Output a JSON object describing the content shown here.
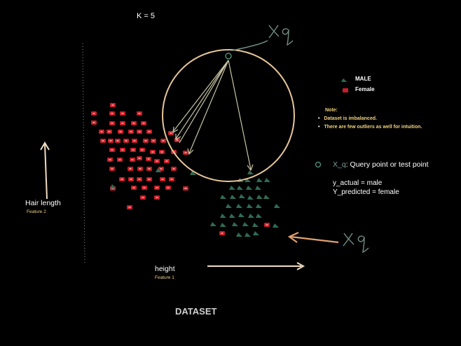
{
  "k_label": "K = 5",
  "legend": {
    "male": "MALE",
    "female": "Female"
  },
  "note": {
    "title": "Note:",
    "items": [
      "Dataset is imbalanced.",
      "There are few outliers as well for intuition."
    ]
  },
  "query": {
    "symbol": "X_q",
    "description": ":  Query point or  test point"
  },
  "prediction": {
    "y_actual": "y_actual = male",
    "y_predicted": "Y_predicted = female"
  },
  "axes": {
    "y_label": "Hair length",
    "y_feature": "Feature 2",
    "x_label": "height",
    "x_feature": "Feature 1"
  },
  "title": "DATASET",
  "handwritten": {
    "xq_top": "xq",
    "xq_right": "xq"
  },
  "colors": {
    "background": "#000000",
    "female": "#c81e28",
    "male": "#2f6b55",
    "circle": "#e8c79a",
    "arrow": "#f0dcc0",
    "note": "#f2d27c"
  }
}
